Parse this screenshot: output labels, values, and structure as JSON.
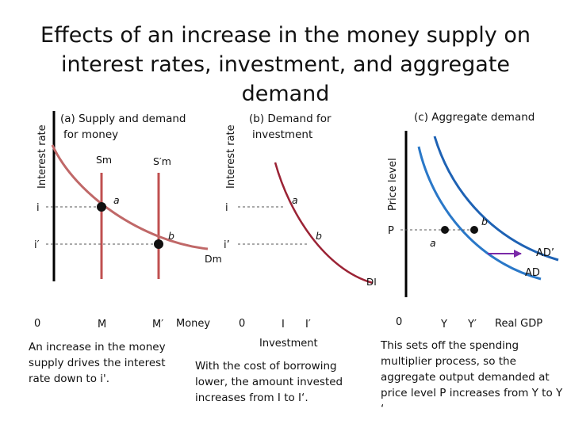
{
  "title": "Effects of an increase in the money supply on interest rates, investment, and aggregate demand",
  "colors": {
    "supply_line": "#c05050",
    "money_demand": "#c06868",
    "investment_demand": "#9b2335",
    "ad_initial": "#2a78c8",
    "ad_shifted": "#1e62b4",
    "arrow": "#7a2aa8",
    "axis": "#000000"
  },
  "panel_a": {
    "heading": "(a) Supply and demand for money",
    "y_axis": "Interest rate",
    "supply_label": "Sm",
    "supply_label_new": "S′m",
    "demand_label": "Dm",
    "rate_i": "i",
    "rate_i_prime": "i′",
    "origin": "0",
    "x_m": "M",
    "x_m_prime": "M′",
    "x_axis": "Money",
    "point_a": "a",
    "point_b": "b",
    "caption": "An increase in the money supply drives the interest rate down to i'."
  },
  "panel_b": {
    "heading": "(b) Demand for investment",
    "y_axis": "Interest rate",
    "rate_i": "i",
    "rate_i_prime": "i’",
    "origin": "0",
    "x_i": "I",
    "x_i_prime": "I′",
    "x_axis": "Investment",
    "demand_label": "DI",
    "point_a": "a",
    "point_b": "b",
    "caption": "With the cost of borrowing lower, the amount invested increases from I to I‘."
  },
  "panel_c": {
    "heading": "(c) Aggregate demand",
    "y_axis": "Price level",
    "price_p": "P",
    "origin": "0",
    "x_y": "Y",
    "x_y_prime": "Y′",
    "x_axis": "Real GDP",
    "curve_ad": "AD",
    "curve_ad_prime": "AD’",
    "point_a": "a",
    "point_b": "b",
    "caption": "This sets off the spending multiplier process, so the aggregate output demanded at price level P increases from Y to Y ‘"
  }
}
